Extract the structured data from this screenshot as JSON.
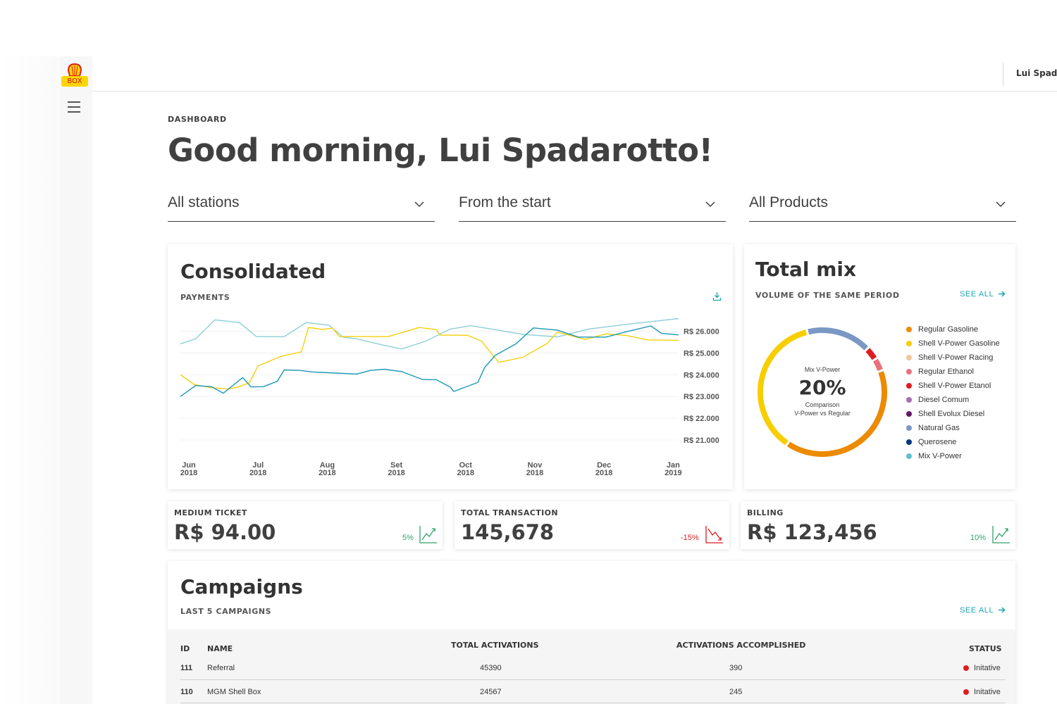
{
  "brand": {
    "logo_text": "BOX"
  },
  "topbar": {
    "user": "Lui Spadarotto"
  },
  "header": {
    "eyebrow": "DASHBOARD",
    "greeting": "Good morning, Lui Spadarotto!"
  },
  "filters": [
    {
      "label": "All stations"
    },
    {
      "label": "From the start"
    },
    {
      "label": "All Products"
    }
  ],
  "consolidated": {
    "title": "Consolidated",
    "subtitle": "PAYMENTS",
    "chart_data": {
      "type": "line",
      "title": "Consolidated",
      "subtitle": "PAYMENTS",
      "x_labels": [
        [
          "Jun",
          "2018"
        ],
        [
          "Jul",
          "2018"
        ],
        [
          "Aug",
          "2018"
        ],
        [
          "Set",
          "2018"
        ],
        [
          "Oct",
          "2018"
        ],
        [
          "Nov",
          "2018"
        ],
        [
          "Dec",
          "2018"
        ],
        [
          "Jan",
          "2019"
        ]
      ],
      "y_ticks": [
        "R$ 26.000",
        "R$ 25.000",
        "R$ 24.000",
        "R$ 23.000",
        "R$ 22.000",
        "R$ 21.000"
      ],
      "ylim": [
        21000,
        26500
      ],
      "x_range": [
        0,
        7.2
      ],
      "grid": true,
      "series": [
        {
          "color": "#8dcfd6",
          "points": [
            [
              0,
              25420
            ],
            [
              0.22,
              25650
            ],
            [
              0.5,
              26520
            ],
            [
              0.85,
              26400
            ],
            [
              1.1,
              25750
            ],
            [
              1.5,
              25750
            ],
            [
              1.82,
              26400
            ],
            [
              2.15,
              26270
            ],
            [
              2.35,
              25730
            ],
            [
              2.55,
              25650
            ],
            [
              2.85,
              25420
            ],
            [
              3.2,
              25180
            ],
            [
              3.55,
              25550
            ],
            [
              3.9,
              26100
            ],
            [
              4.2,
              26250
            ],
            [
              4.55,
              26070
            ],
            [
              4.95,
              25850
            ],
            [
              5.45,
              25740
            ],
            [
              5.9,
              26100
            ],
            [
              6.55,
              26350
            ],
            [
              7.2,
              26580
            ]
          ]
        },
        {
          "color": "#f5cf0a",
          "points": [
            [
              0,
              24000
            ],
            [
              0.2,
              23550
            ],
            [
              0.45,
              23400
            ],
            [
              0.7,
              23350
            ],
            [
              0.85,
              23450
            ],
            [
              1.0,
              23640
            ],
            [
              1.12,
              24400
            ],
            [
              1.45,
              24840
            ],
            [
              1.75,
              25050
            ],
            [
              1.85,
              26170
            ],
            [
              2.05,
              26080
            ],
            [
              2.2,
              26140
            ],
            [
              2.3,
              25750
            ],
            [
              2.55,
              25760
            ],
            [
              3.0,
              25750
            ],
            [
              3.45,
              26170
            ],
            [
              3.7,
              26070
            ],
            [
              3.75,
              25820
            ],
            [
              4.15,
              25810
            ],
            [
              4.35,
              25550
            ],
            [
              4.6,
              24570
            ],
            [
              4.95,
              24800
            ],
            [
              5.3,
              25440
            ],
            [
              5.45,
              25960
            ],
            [
              5.85,
              25620
            ],
            [
              6.15,
              25880
            ],
            [
              6.45,
              25800
            ],
            [
              6.75,
              25600
            ],
            [
              7.2,
              25580
            ]
          ]
        },
        {
          "color": "#1a98b4",
          "points": [
            [
              0,
              23000
            ],
            [
              0.22,
              23500
            ],
            [
              0.45,
              23450
            ],
            [
              0.62,
              23150
            ],
            [
              0.9,
              23870
            ],
            [
              1.02,
              23440
            ],
            [
              1.2,
              23450
            ],
            [
              1.4,
              23700
            ],
            [
              1.5,
              24220
            ],
            [
              1.72,
              24200
            ],
            [
              1.9,
              24130
            ],
            [
              2.15,
              24090
            ],
            [
              2.55,
              24030
            ],
            [
              2.75,
              24200
            ],
            [
              2.95,
              24250
            ],
            [
              3.2,
              24140
            ],
            [
              3.5,
              23780
            ],
            [
              3.7,
              23770
            ],
            [
              3.9,
              23430
            ],
            [
              3.95,
              23230
            ],
            [
              4.05,
              23350
            ],
            [
              4.3,
              23650
            ],
            [
              4.4,
              24350
            ],
            [
              4.55,
              24890
            ],
            [
              4.85,
              25420
            ],
            [
              5.1,
              26150
            ],
            [
              5.45,
              26050
            ],
            [
              5.75,
              25730
            ],
            [
              6.15,
              25730
            ],
            [
              6.45,
              25980
            ],
            [
              6.8,
              26240
            ],
            [
              6.95,
              25900
            ],
            [
              7.2,
              25830
            ]
          ]
        }
      ]
    }
  },
  "total_mix": {
    "title": "Total mix",
    "subtitle": "VOLUME OF THE SAME PERIOD",
    "see_all": "SEE ALL",
    "center_top": "Mix V-Power",
    "center_value": "20%",
    "center_caption": "Comparison",
    "center_caption_2": "V-Power vs Regular",
    "chart_data": {
      "type": "pie",
      "slices": [
        {
          "color": "#f7ce00",
          "pct": 33
        },
        {
          "color": "#7b98c4",
          "pct": 15
        },
        {
          "color": "#dd1d21",
          "pct": 3
        },
        {
          "color": "#e8717d",
          "pct": 3
        },
        {
          "color": "#ec8a02",
          "pct": 36
        }
      ]
    },
    "legend": [
      {
        "label": "Regular Gasoline",
        "color": "#ec8a02"
      },
      {
        "label": "Shell V-Power Gasoline",
        "color": "#f7ce00"
      },
      {
        "label": "Shell V-Power Racing",
        "color": "#f2c79a"
      },
      {
        "label": "Regular Ethanol",
        "color": "#e8717d"
      },
      {
        "label": "Shell V-Power Etanol",
        "color": "#dd1d21"
      },
      {
        "label": "Diesel Comum",
        "color": "#a56eb1"
      },
      {
        "label": "Shell Evolux Diesel",
        "color": "#641964"
      },
      {
        "label": "Natural Gas",
        "color": "#7b98c4"
      },
      {
        "label": "Querosene",
        "color": "#003882"
      },
      {
        "label": "Mix V-Power",
        "color": "#5fbfd0"
      }
    ]
  },
  "kpis": [
    {
      "label": "MEDIUM TICKET",
      "value": "R$ 94.00",
      "delta": "5%",
      "trend": "up",
      "color": "#2ea36b"
    },
    {
      "label": "TOTAL TRANSACTION",
      "value": "145,678",
      "delta": "-15%",
      "trend": "down",
      "color": "#dd1d21"
    },
    {
      "label": "BILLING",
      "value": "R$ 123,456",
      "delta": "10%",
      "trend": "up",
      "color": "#2ea36b"
    }
  ],
  "campaigns": {
    "title": "Campaigns",
    "subtitle": "LAST 5 CAMPAIGNS",
    "see_all": "SEE ALL",
    "columns": {
      "id": "ID",
      "name": "NAME",
      "total": "TOTAL ACTIVATIONS",
      "accomplished": "ACTIVATIONS ACCOMPLISHED",
      "status": "STATUS"
    },
    "rows": [
      {
        "id": "111",
        "name": "Referral",
        "total": "45390",
        "accomplished": "390",
        "status": "Initative"
      },
      {
        "id": "110",
        "name": "MGM Shell Box",
        "total": "24567",
        "accomplished": "245",
        "status": "Initative"
      }
    ]
  },
  "colors": {
    "accent": "#1aa6b0",
    "brand_yellow": "#ffd500",
    "brand_red": "#dd1d21",
    "text": "#404040"
  }
}
